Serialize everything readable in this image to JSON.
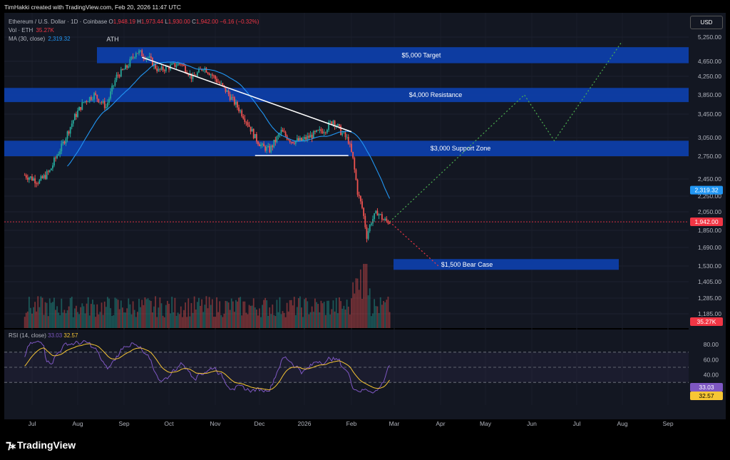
{
  "header": {
    "text": "TimHakki created with TradingView.com, Feb 20, 2026 11:47 UTC"
  },
  "legend": {
    "symbol": "Ethereum / U.S. Dollar · 1D · Coinbase",
    "o": "O",
    "o_val": "1,948.19",
    "h": "H",
    "h_val": "1,973.44",
    "l": "L",
    "l_val": "1,930.00",
    "c": "C",
    "c_val": "1,942.00",
    "change": "−6.16 (−0.32%)",
    "vol_label": "Vol · ETH",
    "vol_val": "35.27K",
    "ma_label": "MA (30, close)",
    "ma_val": "2,319.32"
  },
  "rsi_legend": {
    "label": "RSI (14, close)",
    "v1": "33.03",
    "v2": "32.57"
  },
  "usd_button": "USD",
  "brand": "TradingView",
  "colors": {
    "up": "#26a69a",
    "down": "#ef5350",
    "zone": "#0d3ea5",
    "ma": "#2196f3",
    "rsi": "#7e57c2",
    "rsi_ma": "#f7c634",
    "bg": "#131722"
  },
  "chart_data": {
    "type": "candlestick",
    "y_axis_labels": [
      "5,250.00",
      "4,650.00",
      "4,250.00",
      "3,850.00",
      "3,450.00",
      "3,050.00",
      "2,750.00",
      "2,450.00",
      "2,250.00",
      "2,050.00",
      "1,850.00",
      "1,690.00",
      "1,530.00",
      "1,405.00",
      "1,285.00",
      "1,185.00"
    ],
    "x_axis_labels": [
      "Jul",
      "Aug",
      "Sep",
      "Oct",
      "Nov",
      "Dec",
      "2026",
      "Feb",
      "Mar",
      "Apr",
      "May",
      "Jun",
      "Jul",
      "Aug",
      "Sep"
    ],
    "price_tags": [
      {
        "text": "2,319.32",
        "value": 2319.32,
        "color": "#2196f3"
      },
      {
        "text": "1,942.00",
        "value": 1942,
        "color": "#f23645"
      },
      {
        "text": "35.27K",
        "value": 35.27,
        "color": "#f23645"
      }
    ],
    "rsi_axis_labels": [
      "80.00",
      "60.00",
      "40.00",
      "20.00"
    ],
    "rsi_tags": [
      {
        "text": "33.03",
        "color": "#7e57c2"
      },
      {
        "text": "32.57",
        "color": "#f7c634"
      }
    ],
    "zones": [
      {
        "label": "$5,000 Target",
        "low": 4600,
        "high": 5000
      },
      {
        "label": "$4,000 Resistance",
        "low": 3700,
        "high": 4000
      },
      {
        "label": "$3,000 Support Zone",
        "low": 2750,
        "high": 3000
      },
      {
        "label": "$1,500 Bear Case",
        "low": 1500,
        "high": 1590
      }
    ],
    "annotations": [
      {
        "text": "ATH"
      }
    ],
    "key_prices": {
      "ath": 4950,
      "last_close": 1942,
      "feb_low": 1750,
      "ma30": 2319.32
    },
    "rsi_levels": {
      "upper": 70,
      "mid": 50,
      "lower": 30
    }
  }
}
